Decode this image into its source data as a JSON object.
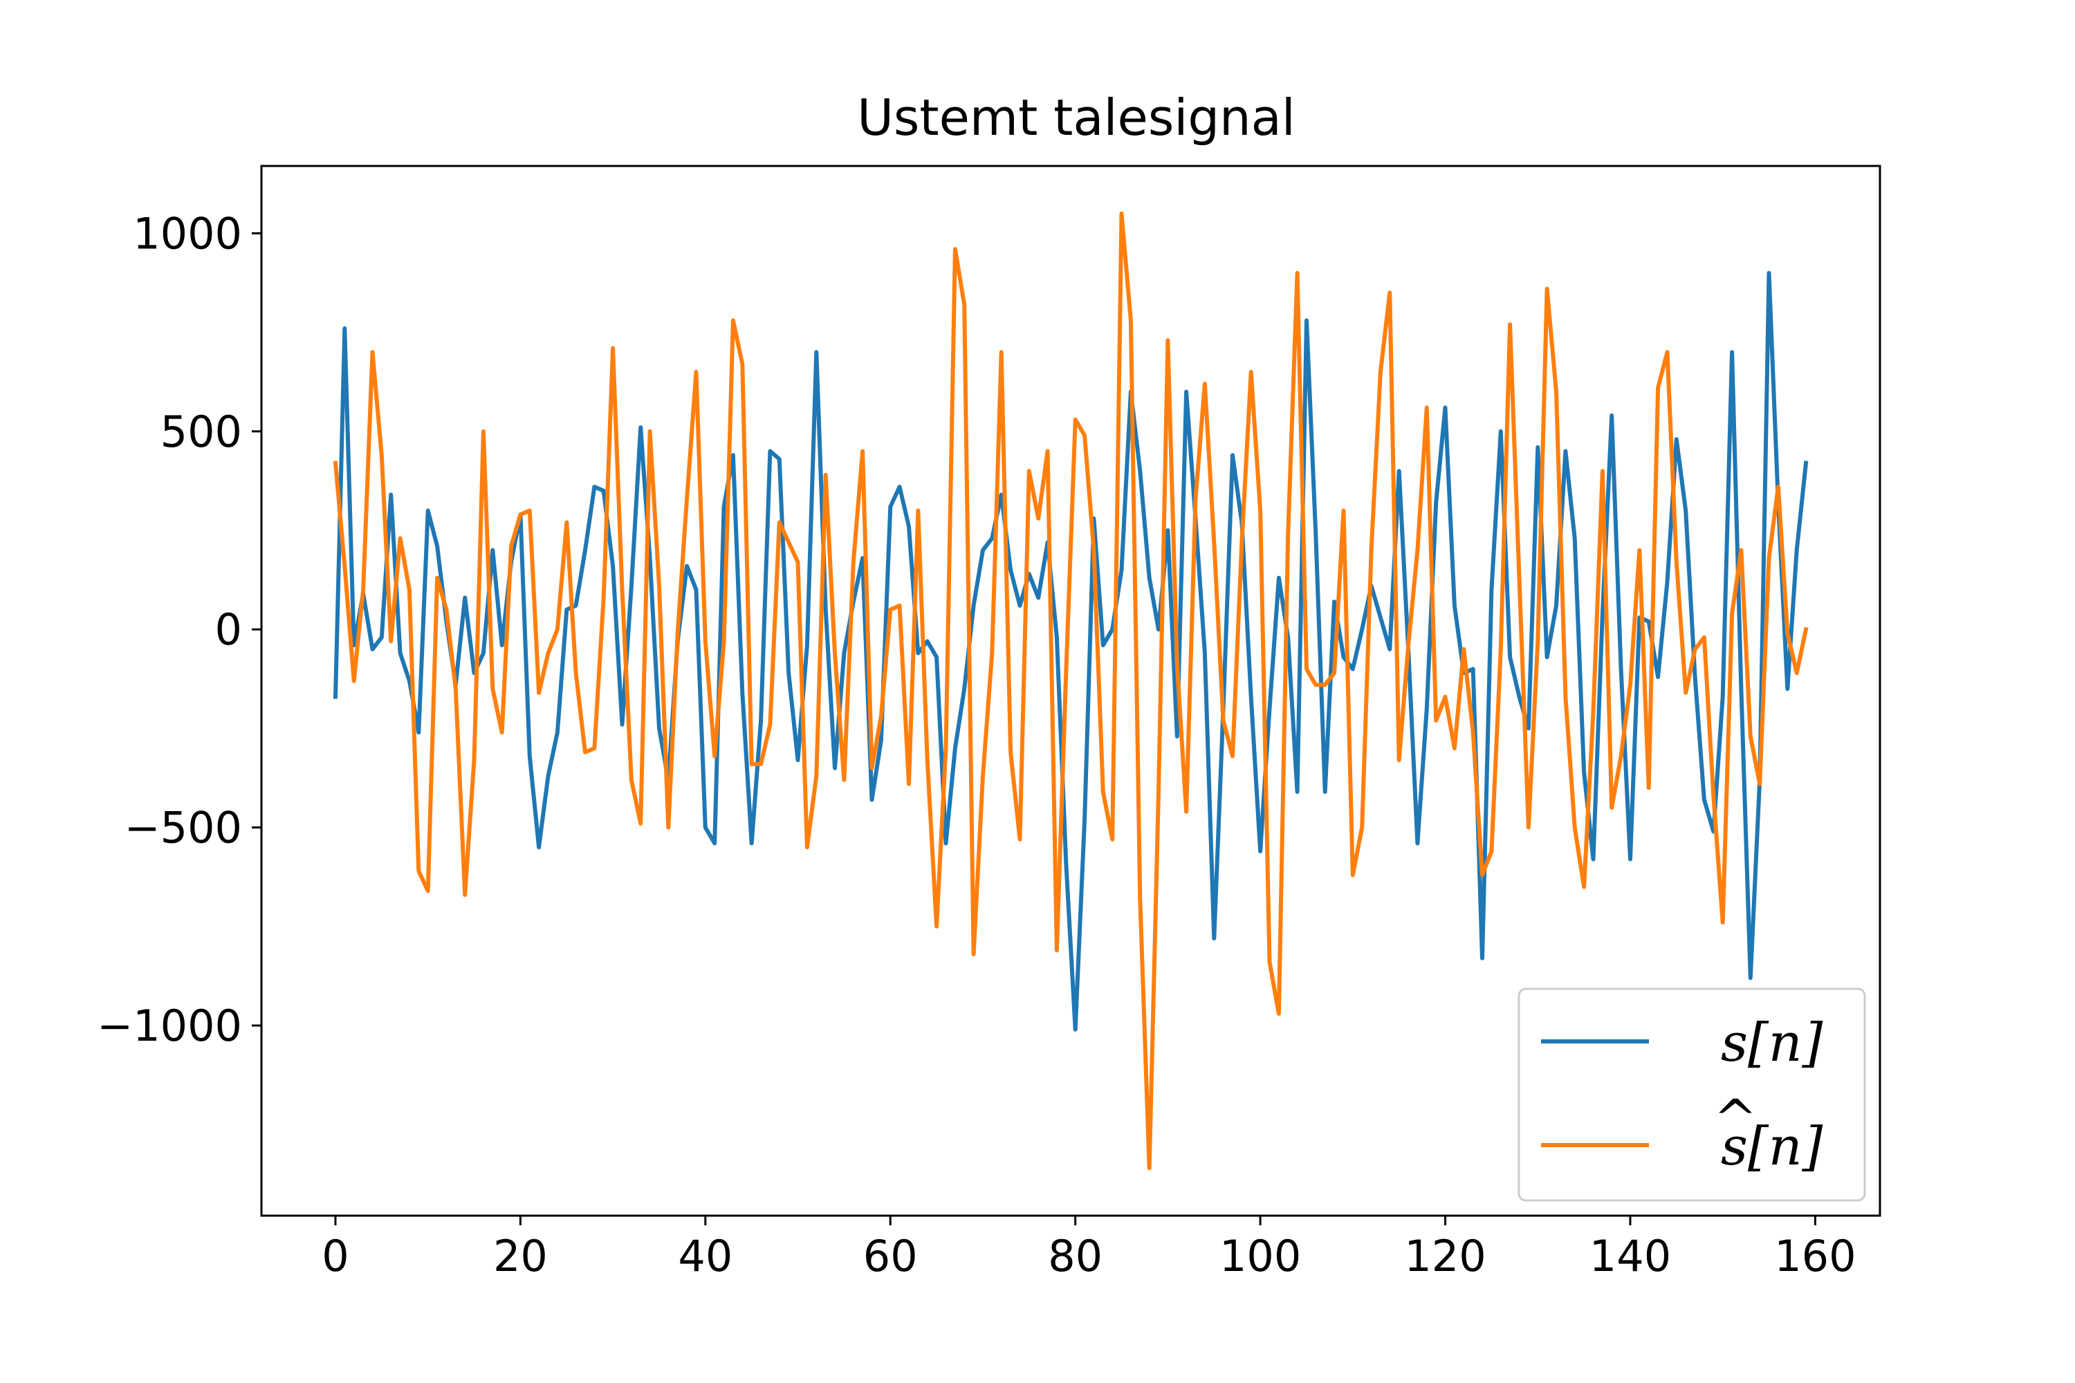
{
  "chart_data": {
    "type": "line",
    "title": "Ustemt talesignal",
    "xlabel": "",
    "ylabel": "",
    "xlim": [
      -8,
      167
    ],
    "ylim": [
      -1480,
      1170
    ],
    "xticks": [
      0,
      20,
      40,
      60,
      80,
      100,
      120,
      140,
      160
    ],
    "xtick_labels": [
      "0",
      "20",
      "40",
      "60",
      "80",
      "100",
      "120",
      "140",
      "160"
    ],
    "yticks": [
      1000,
      500,
      0,
      -500,
      -1000
    ],
    "ytick_labels": [
      "1000",
      "500",
      "0",
      "−500",
      "−1000"
    ],
    "grid": false,
    "legend_position": "lower right",
    "series": [
      {
        "name": "s[n]",
        "legend_main": "s",
        "legend_hat": "",
        "legend_suffix": "[n]",
        "color": "#1f77b4",
        "x": [
          0,
          1,
          2,
          3,
          4,
          5,
          6,
          7,
          8,
          9,
          10,
          11,
          12,
          13,
          14,
          15,
          16,
          17,
          18,
          19,
          20,
          21,
          22,
          23,
          24,
          25,
          26,
          27,
          28,
          29,
          30,
          31,
          32,
          33,
          34,
          35,
          36,
          37,
          38,
          39,
          40,
          41,
          42,
          43,
          44,
          45,
          46,
          47,
          48,
          49,
          50,
          51,
          52,
          53,
          54,
          55,
          56,
          57,
          58,
          59,
          60,
          61,
          62,
          63,
          64,
          65,
          66,
          67,
          68,
          69,
          70,
          71,
          72,
          73,
          74,
          75,
          76,
          77,
          78,
          79,
          80,
          81,
          82,
          83,
          84,
          85,
          86,
          87,
          88,
          89,
          90,
          91,
          92,
          93,
          94,
          95,
          96,
          97,
          98,
          99,
          100,
          101,
          102,
          103,
          104,
          105,
          106,
          107,
          108,
          109,
          110,
          111,
          112,
          113,
          114,
          115,
          116,
          117,
          118,
          119,
          120,
          121,
          122,
          123,
          124,
          125,
          126,
          127,
          128,
          129,
          130,
          131,
          132,
          133,
          134,
          135,
          136,
          137,
          138,
          139,
          140,
          141,
          142,
          143,
          144,
          145,
          146,
          147,
          148,
          149,
          150,
          151,
          152,
          153,
          154,
          155,
          156,
          157,
          158,
          159
        ],
        "values": [
          -170,
          760,
          -40,
          90,
          -50,
          -20,
          340,
          -60,
          -130,
          -260,
          300,
          210,
          20,
          -140,
          80,
          -110,
          -60,
          200,
          -40,
          170,
          290,
          -320,
          -550,
          -370,
          -260,
          50,
          60,
          200,
          360,
          350,
          160,
          -240,
          110,
          510,
          180,
          -250,
          -380,
          -30,
          160,
          100,
          -500,
          -540,
          310,
          440,
          -160,
          -540,
          -230,
          450,
          430,
          -110,
          -330,
          -40,
          700,
          50,
          -350,
          -60,
          70,
          180,
          -430,
          -280,
          310,
          360,
          260,
          -60,
          -30,
          -70,
          -540,
          -300,
          -150,
          60,
          200,
          230,
          340,
          150,
          60,
          140,
          80,
          220,
          -20,
          -590,
          -1010,
          -480,
          280,
          -40,
          0,
          150,
          600,
          400,
          130,
          0,
          250,
          -270,
          600,
          280,
          -60,
          -780,
          -200,
          440,
          270,
          -170,
          -560,
          -200,
          130,
          -20,
          -410,
          780,
          240,
          -410,
          70,
          -70,
          -100,
          0,
          110,
          30,
          -50,
          400,
          -50,
          -540,
          -200,
          320,
          560,
          60,
          -110,
          -100,
          -830,
          100,
          500,
          -70,
          -170,
          -250,
          460,
          -70,
          60,
          450,
          230,
          -360,
          -580,
          40,
          540,
          -100,
          -580,
          30,
          20,
          -120,
          120,
          480,
          300,
          -120,
          -430,
          -510,
          -170,
          700,
          -150,
          -880,
          -380,
          900,
          320,
          -150,
          200,
          420
        ]
      },
      {
        "name": "ŝ[n]",
        "legend_main": "s",
        "legend_hat": "^",
        "legend_suffix": "[n]",
        "color": "#ff7f0e",
        "x": [
          0,
          1,
          2,
          3,
          4,
          5,
          6,
          7,
          8,
          9,
          10,
          11,
          12,
          13,
          14,
          15,
          16,
          17,
          18,
          19,
          20,
          21,
          22,
          23,
          24,
          25,
          26,
          27,
          28,
          29,
          30,
          31,
          32,
          33,
          34,
          35,
          36,
          37,
          38,
          39,
          40,
          41,
          42,
          43,
          44,
          45,
          46,
          47,
          48,
          49,
          50,
          51,
          52,
          53,
          54,
          55,
          56,
          57,
          58,
          59,
          60,
          61,
          62,
          63,
          64,
          65,
          66,
          67,
          68,
          69,
          70,
          71,
          72,
          73,
          74,
          75,
          76,
          77,
          78,
          79,
          80,
          81,
          82,
          83,
          84,
          85,
          86,
          87,
          88,
          89,
          90,
          91,
          92,
          93,
          94,
          95,
          96,
          97,
          98,
          99,
          100,
          101,
          102,
          103,
          104,
          105,
          106,
          107,
          108,
          109,
          110,
          111,
          112,
          113,
          114,
          115,
          116,
          117,
          118,
          119,
          120,
          121,
          122,
          123,
          124,
          125,
          126,
          127,
          128,
          129,
          130,
          131,
          132,
          133,
          134,
          135,
          136,
          137,
          138,
          139,
          140,
          141,
          142,
          143,
          144,
          145,
          146,
          147,
          148,
          149,
          150,
          151,
          152,
          153,
          154,
          155,
          156,
          157,
          158,
          159
        ],
        "values": [
          420,
          160,
          -130,
          100,
          700,
          440,
          -30,
          230,
          100,
          -610,
          -660,
          130,
          50,
          -150,
          -670,
          -330,
          500,
          -150,
          -260,
          210,
          290,
          300,
          -160,
          -60,
          0,
          270,
          -110,
          -310,
          -300,
          80,
          710,
          100,
          -380,
          -490,
          500,
          110,
          -500,
          -10,
          330,
          650,
          -30,
          -320,
          -30,
          780,
          670,
          -340,
          -340,
          -240,
          270,
          220,
          170,
          -550,
          -370,
          390,
          -60,
          -380,
          170,
          450,
          -350,
          -220,
          50,
          60,
          -390,
          300,
          -330,
          -750,
          -300,
          960,
          820,
          -820,
          -370,
          -60,
          700,
          -310,
          -530,
          400,
          280,
          450,
          -810,
          -110,
          530,
          490,
          200,
          -410,
          -530,
          1050,
          780,
          -680,
          -1360,
          -410,
          730,
          -90,
          -460,
          330,
          620,
          220,
          -230,
          -320,
          220,
          650,
          300,
          -840,
          -970,
          240,
          900,
          -100,
          -140,
          -140,
          -110,
          300,
          -620,
          -500,
          200,
          650,
          850,
          -330,
          -40,
          200,
          560,
          -230,
          -170,
          -300,
          -50,
          -260,
          -620,
          -560,
          -50,
          770,
          130,
          -500,
          -30,
          860,
          600,
          -170,
          -500,
          -650,
          -210,
          400,
          -450,
          -320,
          -140,
          200,
          -400,
          610,
          700,
          170,
          -160,
          -50,
          -20,
          -420,
          -740,
          40,
          200,
          -270,
          -390,
          180,
          360,
          -10,
          -110,
          0
        ]
      }
    ]
  }
}
